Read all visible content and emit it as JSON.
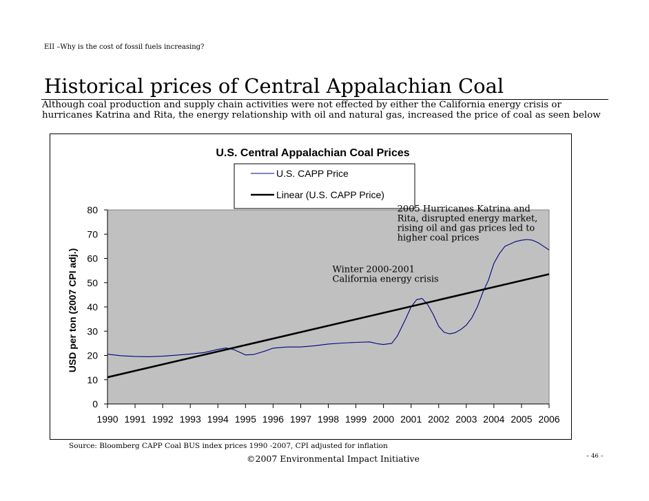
{
  "slide": {
    "header_note": "EII –Why is the cost of fossil fuels increasing?",
    "title": "Historical prices of Central Appalachian Coal",
    "intro": "Although coal production and supply chain activities were not effected by either the California energy crisis or hurricanes Katrina and Rita, the energy relationship with oil and natural gas, increased the price of coal as seen below",
    "source": "Source: Bloomberg CAPP Coal BUS index prices 1990 -2007, CPI adjusted for inflation",
    "footer": "©2007 Environmental Impact Initiative",
    "page_number": "– 46 –"
  },
  "chart_data": {
    "type": "line",
    "title": "U.S. Central Appalachian Coal Prices",
    "xlabel": "",
    "ylabel": "USD per ton (2007 CPI adj.)",
    "x": [
      1990,
      1991,
      1992,
      1993,
      1994,
      1995,
      1996,
      1997,
      1998,
      1999,
      2000,
      2001,
      2002,
      2003,
      2004,
      2005,
      2006
    ],
    "x_tick_labels": [
      "1990",
      "1991",
      "1992",
      "1993",
      "1994",
      "1995",
      "1996",
      "1997",
      "1998",
      "1999",
      "2000",
      "2001",
      "2002",
      "2003",
      "2004",
      "2005",
      "2006"
    ],
    "y_ticks": [
      0,
      10,
      20,
      30,
      40,
      50,
      60,
      70,
      80
    ],
    "ylim": [
      0,
      80
    ],
    "xlim": [
      1990,
      2006
    ],
    "grid": false,
    "plot_background": "#c0c0c0",
    "legend_position": "top-center",
    "series": [
      {
        "name": "U.S. CAPP Price",
        "color": "#000080",
        "stroke": "thin",
        "points": [
          [
            1990.0,
            20.5
          ],
          [
            1990.5,
            19.9
          ],
          [
            1991.0,
            19.6
          ],
          [
            1991.5,
            19.5
          ],
          [
            1992.0,
            19.7
          ],
          [
            1992.5,
            20.1
          ],
          [
            1993.0,
            20.6
          ],
          [
            1993.5,
            21.2
          ],
          [
            1994.0,
            22.5
          ],
          [
            1994.3,
            23.1
          ],
          [
            1994.6,
            22.3
          ],
          [
            1995.0,
            20.2
          ],
          [
            1995.3,
            20.4
          ],
          [
            1995.7,
            21.8
          ],
          [
            1996.0,
            23.0
          ],
          [
            1996.5,
            23.5
          ],
          [
            1997.0,
            23.5
          ],
          [
            1997.5,
            24.0
          ],
          [
            1998.0,
            24.7
          ],
          [
            1998.5,
            25.1
          ],
          [
            1999.0,
            25.4
          ],
          [
            1999.5,
            25.6
          ],
          [
            1999.8,
            24.8
          ],
          [
            2000.0,
            24.5
          ],
          [
            2000.3,
            25.0
          ],
          [
            2000.5,
            28.0
          ],
          [
            2000.8,
            35.0
          ],
          [
            2001.0,
            40.0
          ],
          [
            2001.2,
            43.0
          ],
          [
            2001.4,
            43.5
          ],
          [
            2001.6,
            41.0
          ],
          [
            2001.8,
            37.0
          ],
          [
            2002.0,
            32.0
          ],
          [
            2002.2,
            29.5
          ],
          [
            2002.4,
            28.9
          ],
          [
            2002.6,
            29.4
          ],
          [
            2002.8,
            30.7
          ],
          [
            2003.0,
            32.5
          ],
          [
            2003.2,
            35.5
          ],
          [
            2003.4,
            40.0
          ],
          [
            2003.6,
            46.0
          ],
          [
            2003.8,
            51.0
          ],
          [
            2004.0,
            58.0
          ],
          [
            2004.2,
            62.0
          ],
          [
            2004.4,
            65.0
          ],
          [
            2004.6,
            66.0
          ],
          [
            2004.8,
            67.0
          ],
          [
            2005.0,
            67.5
          ],
          [
            2005.2,
            67.8
          ],
          [
            2005.4,
            67.5
          ],
          [
            2005.6,
            66.5
          ],
          [
            2005.8,
            65.0
          ],
          [
            2006.0,
            63.5
          ]
        ]
      },
      {
        "name": "Linear (U.S. CAPP Price)",
        "color": "#000000",
        "stroke": "thick",
        "points": [
          [
            1990,
            11.0
          ],
          [
            2006,
            53.5
          ]
        ]
      }
    ],
    "annotations": [
      {
        "lines": [
          "2005 Hurricanes Katrina and",
          "Rita, disrupted energy market,",
          "rising oil and gas prices led to",
          "higher coal prices"
        ],
        "x": 2000.5,
        "y": 79.3
      },
      {
        "lines": [
          "Winter 2000-2001",
          "California energy crisis"
        ],
        "x": 1998.15,
        "y": 54.3
      }
    ]
  }
}
